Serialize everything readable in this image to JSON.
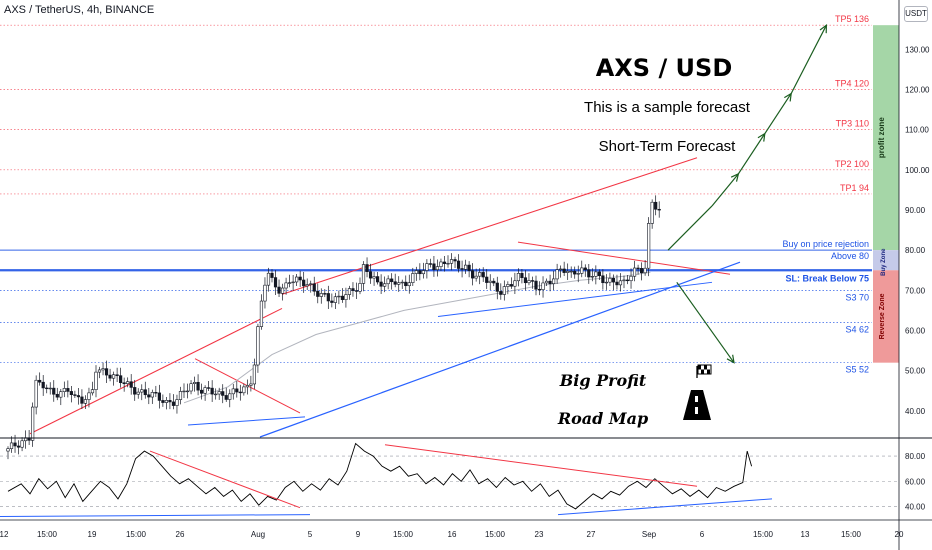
{
  "header": {
    "symbol_line": "AXS / TetherUS, 4h, BINANCE"
  },
  "currency_badge": "USDT",
  "colors": {
    "bullish_candle": "#131722",
    "bearish_candle": "#131722",
    "trend_red": "#f23645",
    "trend_blue": "#2962ff",
    "level_blue": "#1e53e5",
    "target_red": "#f23645",
    "profit_zone": "#a5d6a7",
    "buy_zone": "#c5cae9",
    "reverse_zone": "#ef9a9a",
    "arrow_green": "#1b5e20",
    "ma_gray": "#b2b5be"
  },
  "annotations": {
    "title": "AXS / USD",
    "subtitle1": "This is a sample forecast",
    "subtitle2": "Short-Term Forecast",
    "road1": "Big Profit",
    "road2": "Road Map",
    "zone_profit": "profit zone",
    "zone_buy": "Buy Zone",
    "zone_reverse": "Reverse Zone"
  },
  "chart_data": [
    {
      "type": "candlestick",
      "title": "AXS / TetherUS, 4h, BINANCE",
      "y_axis": {
        "ticks": [
          40,
          50,
          60,
          70,
          80,
          90,
          100,
          110,
          120,
          130
        ],
        "tick_labels": [
          "40.00",
          "50.00",
          "60.00",
          "70.00",
          "80.00",
          "90.00",
          "100.00",
          "110.00",
          "120.00",
          "130.00"
        ],
        "range": [
          33.5,
          134.8
        ],
        "scale": "linear"
      },
      "x_axis": {
        "tick_labels": [
          "12",
          "15:00",
          "19",
          "15:00",
          "26",
          "Aug",
          "5",
          "9",
          "15:00",
          "16",
          "15:00",
          "23",
          "27",
          "Sep",
          "6",
          "15:00",
          "13",
          "15:00",
          "20"
        ]
      },
      "levels": [
        {
          "label": "TP5 136",
          "value": 136,
          "color": "red"
        },
        {
          "label": "TP4 120",
          "value": 120,
          "color": "red"
        },
        {
          "label": "TP3 110",
          "value": 110,
          "color": "red"
        },
        {
          "label": "TP2 100",
          "value": 100,
          "color": "red"
        },
        {
          "label": "TP1  94",
          "value": 94,
          "color": "red"
        },
        {
          "label": "Buy on price rejection",
          "value": 80,
          "color": "blue"
        },
        {
          "label": "Above 80",
          "value": 78,
          "color": "blue"
        },
        {
          "label": "SL: Break Below 75",
          "value": 75,
          "color": "blue-bold"
        },
        {
          "label": "S3 70",
          "value": 70,
          "color": "blue"
        },
        {
          "label": "S4 62",
          "value": 62,
          "color": "blue"
        },
        {
          "label": "S5 52",
          "value": 52,
          "color": "blue"
        }
      ],
      "price_path": [
        [
          0,
          30
        ],
        [
          5,
          34
        ],
        [
          6,
          47
        ],
        [
          8,
          46
        ],
        [
          10,
          44
        ],
        [
          12,
          45
        ],
        [
          14,
          46
        ],
        [
          15,
          43
        ],
        [
          17,
          42
        ],
        [
          19,
          44
        ],
        [
          20,
          51
        ],
        [
          22,
          50
        ],
        [
          24,
          48
        ],
        [
          26,
          47
        ],
        [
          28,
          46
        ],
        [
          30,
          45
        ],
        [
          32,
          44
        ],
        [
          34,
          43
        ],
        [
          36,
          42
        ],
        [
          38,
          43
        ],
        [
          40,
          45
        ],
        [
          42,
          46
        ],
        [
          44,
          45
        ],
        [
          46,
          46
        ],
        [
          48,
          44
        ],
        [
          50,
          43
        ],
        [
          52,
          45
        ],
        [
          54,
          46
        ],
        [
          55,
          47
        ],
        [
          56,
          52
        ],
        [
          57,
          62
        ],
        [
          58,
          70
        ],
        [
          59,
          74
        ],
        [
          60,
          72
        ],
        [
          62,
          70
        ],
        [
          64,
          73
        ],
        [
          66,
          72
        ],
        [
          68,
          71
        ],
        [
          70,
          70
        ],
        [
          72,
          69
        ],
        [
          74,
          67
        ],
        [
          76,
          68
        ],
        [
          78,
          70
        ],
        [
          80,
          72
        ],
        [
          81,
          77
        ],
        [
          82,
          74
        ],
        [
          84,
          71
        ],
        [
          86,
          72
        ],
        [
          88,
          73
        ],
        [
          90,
          71
        ],
        [
          92,
          73
        ],
        [
          94,
          75
        ],
        [
          96,
          77
        ],
        [
          98,
          76
        ],
        [
          100,
          77
        ],
        [
          102,
          76
        ],
        [
          104,
          76
        ],
        [
          106,
          74
        ],
        [
          108,
          73
        ],
        [
          110,
          71
        ],
        [
          112,
          70
        ],
        [
          114,
          72
        ],
        [
          116,
          73
        ],
        [
          118,
          72
        ],
        [
          120,
          71
        ],
        [
          122,
          72
        ],
        [
          124,
          73
        ],
        [
          126,
          75
        ],
        [
          128,
          74
        ],
        [
          130,
          76
        ],
        [
          132,
          74
        ],
        [
          134,
          73
        ],
        [
          136,
          72
        ],
        [
          138,
          73
        ],
        [
          140,
          72
        ],
        [
          142,
          74
        ],
        [
          144,
          75
        ],
        [
          145,
          76
        ],
        [
          146,
          93
        ],
        [
          147,
          92
        ],
        [
          148,
          90
        ]
      ],
      "ma_path": [
        [
          40,
          42
        ],
        [
          50,
          46
        ],
        [
          60,
          54
        ],
        [
          70,
          59
        ],
        [
          80,
          62
        ],
        [
          90,
          65
        ],
        [
          100,
          67
        ],
        [
          110,
          69
        ],
        [
          120,
          71
        ],
        [
          130,
          72.5
        ],
        [
          140,
          73.5
        ],
        [
          146,
          74.5
        ]
      ],
      "forecast_path": [
        [
          150,
          80
        ],
        [
          160,
          91
        ],
        [
          166,
          99
        ],
        [
          172,
          109
        ],
        [
          178,
          119
        ],
        [
          186,
          136
        ]
      ],
      "reverse_path": [
        [
          152,
          72
        ],
        [
          165,
          52
        ]
      ]
    },
    {
      "type": "line",
      "title": "oscillator",
      "y_axis": {
        "ticks": [
          40,
          60,
          80
        ],
        "tick_labels": [
          "40.00",
          "60.00",
          "80.00"
        ],
        "range": [
          30,
          92
        ]
      },
      "dashed_levels": [
        40,
        60,
        80
      ],
      "values": [
        [
          0,
          52
        ],
        [
          3,
          58
        ],
        [
          5,
          50
        ],
        [
          7,
          62
        ],
        [
          9,
          54
        ],
        [
          11,
          60
        ],
        [
          13,
          47
        ],
        [
          15,
          58
        ],
        [
          17,
          44
        ],
        [
          19,
          52
        ],
        [
          21,
          60
        ],
        [
          23,
          55
        ],
        [
          25,
          46
        ],
        [
          27,
          58
        ],
        [
          29,
          78
        ],
        [
          31,
          84
        ],
        [
          33,
          80
        ],
        [
          35,
          72
        ],
        [
          37,
          64
        ],
        [
          39,
          58
        ],
        [
          41,
          62
        ],
        [
          43,
          56
        ],
        [
          45,
          50
        ],
        [
          47,
          55
        ],
        [
          49,
          48
        ],
        [
          51,
          53
        ],
        [
          53,
          44
        ],
        [
          55,
          50
        ],
        [
          57,
          41
        ],
        [
          59,
          48
        ],
        [
          61,
          45
        ],
        [
          63,
          55
        ],
        [
          65,
          60
        ],
        [
          67,
          52
        ],
        [
          69,
          58
        ],
        [
          71,
          53
        ],
        [
          73,
          62
        ],
        [
          75,
          57
        ],
        [
          77,
          68
        ],
        [
          79,
          90
        ],
        [
          81,
          84
        ],
        [
          83,
          80
        ],
        [
          85,
          72
        ],
        [
          87,
          68
        ],
        [
          89,
          72
        ],
        [
          91,
          64
        ],
        [
          93,
          66
        ],
        [
          95,
          58
        ],
        [
          97,
          63
        ],
        [
          99,
          57
        ],
        [
          101,
          66
        ],
        [
          103,
          60
        ],
        [
          105,
          69
        ],
        [
          107,
          58
        ],
        [
          109,
          62
        ],
        [
          111,
          55
        ],
        [
          113,
          63
        ],
        [
          115,
          57
        ],
        [
          117,
          60
        ],
        [
          119,
          52
        ],
        [
          121,
          58
        ],
        [
          123,
          48
        ],
        [
          125,
          53
        ],
        [
          127,
          42
        ],
        [
          129,
          38
        ],
        [
          131,
          44
        ],
        [
          133,
          50
        ],
        [
          135,
          46
        ],
        [
          137,
          52
        ],
        [
          139,
          49
        ],
        [
          141,
          56
        ],
        [
          143,
          60
        ],
        [
          145,
          55
        ],
        [
          147,
          62
        ],
        [
          149,
          56
        ],
        [
          151,
          50
        ],
        [
          153,
          54
        ],
        [
          155,
          48
        ],
        [
          157,
          53
        ],
        [
          159,
          47
        ],
        [
          161,
          55
        ],
        [
          163,
          52
        ],
        [
          165,
          56
        ],
        [
          167,
          59
        ],
        [
          168,
          84
        ],
        [
          169,
          72
        ]
      ]
    }
  ]
}
